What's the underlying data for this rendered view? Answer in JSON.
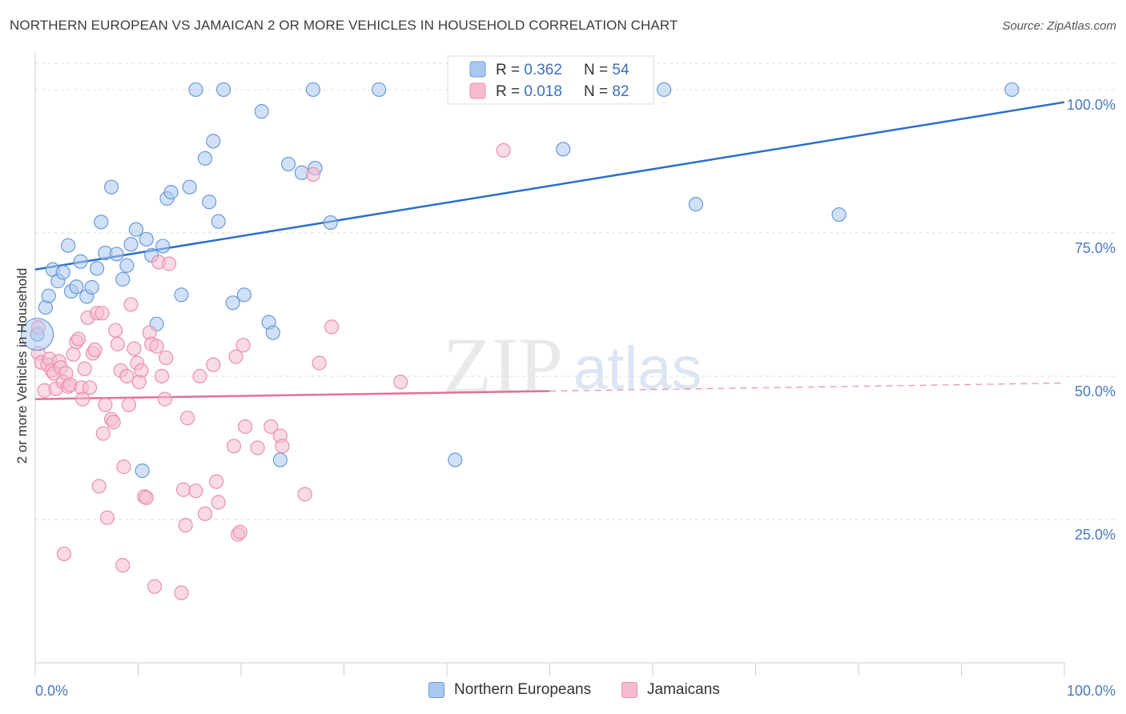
{
  "header": {
    "title": "NORTHERN EUROPEAN VS JAMAICAN 2 OR MORE VEHICLES IN HOUSEHOLD CORRELATION CHART",
    "source": "Source: ZipAtlas.com"
  },
  "colors": {
    "blue_fill": "#a9c8f0",
    "blue_stroke": "#6a9ad8",
    "blue_line": "#2a6fcc",
    "pink_fill": "#f6bccd",
    "pink_stroke": "#e890ab",
    "pink_line": "#e0709a",
    "axis_label": "#4a78c2",
    "grid": "#dddddd"
  },
  "legend": {
    "rows": [
      {
        "r_label": "R = ",
        "r_value": "0.362",
        "n_label": "N = ",
        "n_value": "54"
      },
      {
        "r_label": "R = ",
        "r_value": "0.018",
        "n_label": "N = ",
        "n_value": "82"
      }
    ]
  },
  "bottom_legend": [
    "Northern Europeans",
    "Jamaicans"
  ],
  "watermark": {
    "zip": "ZIP",
    "atlas": "atlas"
  },
  "chart_data": {
    "type": "scatter",
    "xlabel": "",
    "ylabel": "2 or more Vehicles in Household",
    "xlim": [
      0,
      100
    ],
    "ylim": [
      0,
      104.6
    ],
    "x_tick_labels": [
      {
        "value": 0,
        "label": "0.0%"
      },
      {
        "value": 100,
        "label": "100.0%"
      }
    ],
    "y_tick_labels": [
      {
        "value": 25,
        "label": "25.0%"
      },
      {
        "value": 50,
        "label": "50.0%"
      },
      {
        "value": 75,
        "label": "75.0%"
      },
      {
        "value": 100,
        "label": "100.0%"
      }
    ],
    "x_minor_ticks": [
      0,
      10,
      20,
      30,
      40,
      50,
      60,
      70,
      80,
      90,
      100
    ],
    "grid": true,
    "legend_position": "top-center",
    "series": [
      {
        "name": "Northern Europeans",
        "color": "#a9c8f0",
        "r": 0.362,
        "n": 54,
        "trend": {
          "x0": 0,
          "y0": 68.6,
          "x1": 100,
          "y1": 97.8,
          "solid_to": 100
        },
        "points": [
          [
            0.2,
            57.3
          ],
          [
            1.0,
            62.0
          ],
          [
            1.3,
            64.0
          ],
          [
            1.7,
            68.6
          ],
          [
            2.2,
            66.6
          ],
          [
            2.7,
            68.1
          ],
          [
            3.2,
            72.8
          ],
          [
            3.5,
            64.8
          ],
          [
            4.0,
            65.6
          ],
          [
            4.4,
            70.0
          ],
          [
            5.0,
            63.9
          ],
          [
            5.5,
            65.5
          ],
          [
            6.0,
            68.8
          ],
          [
            6.4,
            76.9
          ],
          [
            6.8,
            71.5
          ],
          [
            7.4,
            83.0
          ],
          [
            7.9,
            71.3
          ],
          [
            8.5,
            66.9
          ],
          [
            8.9,
            69.3
          ],
          [
            9.3,
            73.0
          ],
          [
            9.8,
            75.6
          ],
          [
            10.4,
            33.5
          ],
          [
            10.8,
            73.9
          ],
          [
            11.3,
            71.1
          ],
          [
            11.8,
            59.1
          ],
          [
            12.4,
            72.7
          ],
          [
            12.8,
            81.0
          ],
          [
            13.2,
            82.1
          ],
          [
            14.2,
            64.2
          ],
          [
            15.0,
            83.0
          ],
          [
            15.6,
            100.0
          ],
          [
            16.5,
            88.0
          ],
          [
            16.9,
            80.4
          ],
          [
            17.3,
            91.0
          ],
          [
            17.8,
            77.0
          ],
          [
            18.3,
            100.0
          ],
          [
            19.2,
            62.8
          ],
          [
            20.3,
            64.2
          ],
          [
            22.0,
            96.2
          ],
          [
            22.7,
            59.4
          ],
          [
            23.1,
            57.6
          ],
          [
            23.8,
            35.4
          ],
          [
            24.6,
            87.0
          ],
          [
            25.9,
            85.5
          ],
          [
            27.0,
            100.0
          ],
          [
            27.2,
            86.3
          ],
          [
            28.7,
            76.8
          ],
          [
            33.4,
            100.0
          ],
          [
            40.8,
            35.4
          ],
          [
            51.3,
            89.6
          ],
          [
            61.1,
            100.0
          ],
          [
            64.2,
            80.0
          ],
          [
            78.1,
            78.2
          ],
          [
            94.9,
            100.0
          ]
        ]
      },
      {
        "name": "Jamaicans",
        "color": "#f6bccd",
        "r": 0.018,
        "n": 82,
        "trend": {
          "x0": 0,
          "y0": 46.0,
          "x1": 100,
          "y1": 48.8,
          "solid_to": 50
        },
        "points": [
          [
            0.3,
            54.0
          ],
          [
            0.3,
            58.5
          ],
          [
            0.6,
            52.4
          ],
          [
            0.9,
            47.5
          ],
          [
            1.2,
            52.0
          ],
          [
            1.4,
            53.0
          ],
          [
            1.6,
            51.0
          ],
          [
            1.8,
            50.5
          ],
          [
            2.0,
            47.8
          ],
          [
            2.3,
            52.6
          ],
          [
            2.5,
            51.5
          ],
          [
            2.7,
            49.0
          ],
          [
            2.8,
            19.0
          ],
          [
            3.0,
            50.5
          ],
          [
            3.2,
            48.2
          ],
          [
            3.4,
            48.5
          ],
          [
            3.7,
            53.8
          ],
          [
            4.0,
            56.0
          ],
          [
            4.2,
            56.5
          ],
          [
            4.5,
            48.0
          ],
          [
            4.6,
            46.0
          ],
          [
            4.8,
            51.3
          ],
          [
            5.1,
            60.2
          ],
          [
            5.3,
            48.0
          ],
          [
            5.6,
            54.0
          ],
          [
            5.8,
            54.6
          ],
          [
            6.0,
            61.0
          ],
          [
            6.2,
            30.8
          ],
          [
            6.5,
            61.0
          ],
          [
            6.6,
            40.0
          ],
          [
            6.8,
            45.0
          ],
          [
            7.0,
            25.3
          ],
          [
            7.4,
            42.5
          ],
          [
            7.6,
            42.0
          ],
          [
            7.8,
            58.0
          ],
          [
            8.0,
            55.6
          ],
          [
            8.3,
            51.0
          ],
          [
            8.5,
            17.0
          ],
          [
            8.6,
            34.2
          ],
          [
            8.9,
            50.0
          ],
          [
            9.1,
            45.0
          ],
          [
            9.3,
            62.5
          ],
          [
            9.6,
            54.8
          ],
          [
            9.9,
            52.3
          ],
          [
            10.1,
            49.0
          ],
          [
            10.3,
            51.0
          ],
          [
            10.6,
            29.0
          ],
          [
            10.8,
            28.8
          ],
          [
            11.1,
            57.6
          ],
          [
            11.3,
            55.6
          ],
          [
            11.6,
            13.3
          ],
          [
            11.8,
            55.2
          ],
          [
            12.0,
            69.9
          ],
          [
            12.3,
            50.0
          ],
          [
            12.6,
            46.0
          ],
          [
            12.7,
            53.2
          ],
          [
            13.0,
            69.6
          ],
          [
            14.2,
            12.2
          ],
          [
            14.4,
            30.2
          ],
          [
            14.6,
            24.0
          ],
          [
            14.8,
            42.7
          ],
          [
            15.6,
            30.0
          ],
          [
            16.0,
            50.0
          ],
          [
            16.5,
            26.0
          ],
          [
            17.3,
            52.0
          ],
          [
            17.6,
            31.6
          ],
          [
            17.8,
            28.0
          ],
          [
            19.3,
            37.8
          ],
          [
            19.5,
            53.4
          ],
          [
            19.7,
            22.4
          ],
          [
            19.9,
            22.8
          ],
          [
            20.2,
            55.4
          ],
          [
            20.4,
            41.2
          ],
          [
            21.6,
            37.5
          ],
          [
            22.9,
            41.2
          ],
          [
            23.8,
            39.6
          ],
          [
            24.0,
            37.8
          ],
          [
            26.2,
            29.4
          ],
          [
            27.0,
            85.2
          ],
          [
            27.6,
            52.3
          ],
          [
            28.8,
            58.6
          ],
          [
            35.5,
            49.0
          ]
        ],
        "extra_points": [
          [
            45.5,
            89.4
          ]
        ]
      }
    ]
  }
}
